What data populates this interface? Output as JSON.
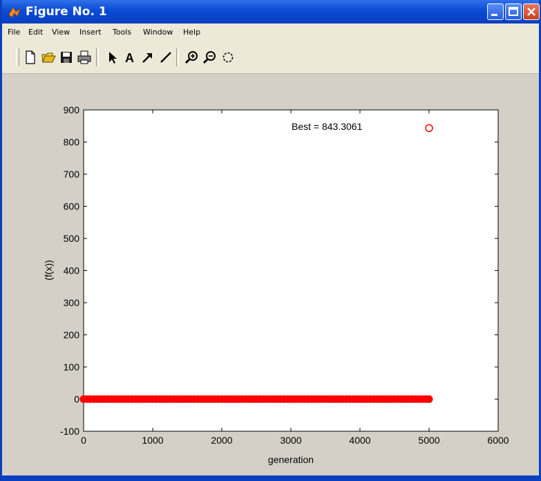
{
  "window": {
    "title": "Figure No. 1"
  },
  "menu": {
    "items": [
      "File",
      "Edit",
      "View",
      "Insert",
      "Tools",
      "Window",
      "Help"
    ]
  },
  "toolbar": {
    "tools": [
      "new-file-icon",
      "open-folder-icon",
      "save-icon",
      "print-icon",
      "select-arrow-icon",
      "text-tool-icon",
      "arrow-tool-icon",
      "line-tool-icon",
      "zoom-in-icon",
      "zoom-out-icon",
      "rotate-icon"
    ],
    "text_tool_glyph": "A"
  },
  "colors": {
    "titlebar": "#0a4bd6",
    "figure_background": "#d4d0c8",
    "marker": "#ff0000"
  },
  "chart_data": {
    "type": "scatter",
    "title": "",
    "xlabel": "generation",
    "ylabel": "(f(x))",
    "xlim": [
      0,
      6000
    ],
    "ylim": [
      -100,
      900
    ],
    "xticks": [
      "0",
      "1000",
      "2000",
      "3000",
      "4000",
      "5000",
      "6000"
    ],
    "yticks": [
      "-100",
      "0",
      "100",
      "200",
      "300",
      "400",
      "500",
      "600",
      "700",
      "800",
      "900"
    ],
    "grid": false,
    "annotation": "Best = 843.3061",
    "series": [
      {
        "marker": "filled-circle",
        "color": "#ff0000",
        "x_range": [
          0,
          5000
        ],
        "y": 0,
        "description_values": [
          0,
          0
        ]
      },
      {
        "marker": "open-circle",
        "color": "#ff0000",
        "points": [
          [
            5000,
            843.3061
          ]
        ]
      }
    ]
  }
}
